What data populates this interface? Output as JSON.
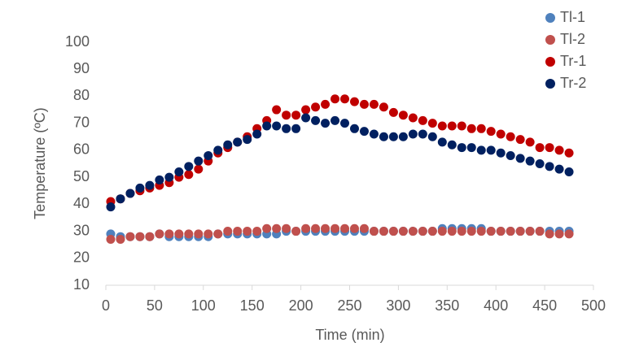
{
  "chart_data": {
    "type": "scatter",
    "xlabel": "Time (min)",
    "ylabel": "Temperature (ºC)",
    "x": [
      5,
      15,
      25,
      35,
      45,
      55,
      65,
      75,
      85,
      95,
      105,
      115,
      125,
      135,
      145,
      155,
      165,
      175,
      185,
      195,
      205,
      215,
      225,
      235,
      245,
      255,
      265,
      275,
      285,
      295,
      305,
      315,
      325,
      335,
      345,
      355,
      365,
      375,
      385,
      395,
      405,
      415,
      425,
      435,
      445,
      455,
      465,
      475
    ],
    "series": [
      {
        "name": "Tl-1",
        "color": "#4f81bd",
        "values": [
          29,
          28,
          28,
          28,
          28,
          29,
          28,
          28,
          28,
          28,
          28,
          29,
          29,
          29,
          29,
          29,
          29,
          29,
          30,
          30,
          30,
          30,
          30,
          30,
          30,
          30,
          30,
          30,
          30,
          30,
          30,
          30,
          30,
          30,
          31,
          31,
          31,
          31,
          31,
          30,
          30,
          30,
          30,
          30,
          30,
          30,
          30,
          30
        ]
      },
      {
        "name": "Tl-2",
        "color": "#c0504d",
        "values": [
          27,
          27,
          28,
          28,
          28,
          29,
          29,
          29,
          29,
          29,
          29,
          29,
          30,
          30,
          30,
          30,
          31,
          31,
          31,
          30,
          31,
          31,
          31,
          31,
          31,
          31,
          31,
          30,
          30,
          30,
          30,
          30,
          30,
          30,
          30,
          30,
          30,
          30,
          30,
          30,
          30,
          30,
          30,
          30,
          30,
          29,
          29,
          29
        ]
      },
      {
        "name": "Tr-1",
        "color": "#c00000",
        "values": [
          41,
          42,
          44,
          45,
          46,
          47,
          48,
          50,
          51,
          53,
          56,
          59,
          61,
          63,
          65,
          68,
          71,
          75,
          73,
          73,
          75,
          76,
          77,
          79,
          79,
          78,
          77,
          77,
          76,
          74,
          73,
          72,
          71,
          70,
          69,
          69,
          69,
          68,
          68,
          67,
          66,
          65,
          64,
          63,
          61,
          61,
          60,
          59
        ]
      },
      {
        "name": "Tr-2",
        "color": "#002060",
        "values": [
          39,
          42,
          44,
          46,
          47,
          49,
          50,
          52,
          54,
          56,
          58,
          60,
          62,
          63,
          64,
          66,
          69,
          69,
          68,
          68,
          72,
          71,
          70,
          71,
          70,
          68,
          67,
          66,
          65,
          65,
          65,
          66,
          66,
          65,
          63,
          62,
          61,
          61,
          60,
          60,
          59,
          58,
          57,
          56,
          55,
          54,
          53,
          52
        ]
      }
    ],
    "xlim": [
      0,
      500
    ],
    "xticks": [
      0,
      50,
      100,
      150,
      200,
      250,
      300,
      350,
      400,
      450,
      500
    ],
    "ylim": [
      10,
      100
    ],
    "yticks": [
      10,
      20,
      30,
      40,
      50,
      60,
      70,
      80,
      90,
      100
    ],
    "legend": "top-right"
  }
}
